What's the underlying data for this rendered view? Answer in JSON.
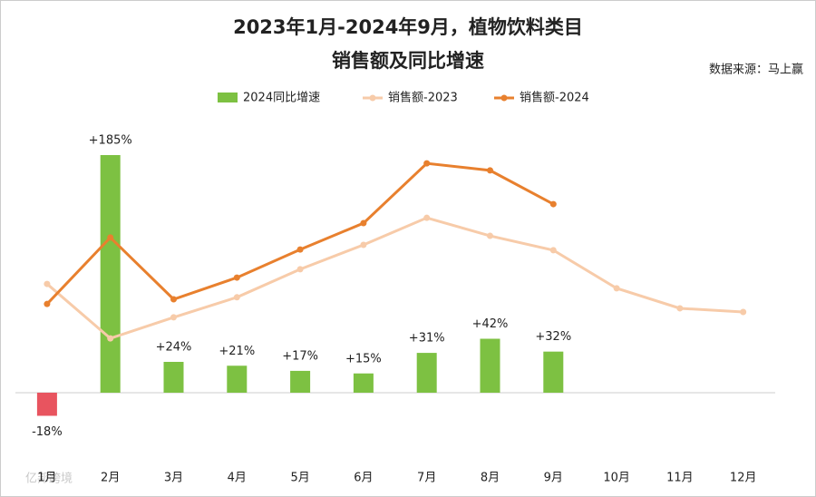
{
  "chart_data": {
    "type": "bar-line",
    "title": "2023年1月-2024年9月，植物饮料类目",
    "subtitle": "销售额及同比增速",
    "source": "数据来源：马上赢",
    "watermark": "亿邦跨境",
    "categories": [
      "1月",
      "2月",
      "3月",
      "4月",
      "5月",
      "6月",
      "7月",
      "8月",
      "9月",
      "10月",
      "11月",
      "12月"
    ],
    "ylim": [
      -50,
      210
    ],
    "y2lim": [
      0,
      100
    ],
    "legend": "top",
    "series": [
      {
        "name": "2024同比增速",
        "type": "bar",
        "color": "#7dc142",
        "negative_color": "#e8545f",
        "values": [
          -18,
          185,
          24,
          21,
          17,
          15,
          31,
          42,
          32,
          null,
          null,
          null
        ],
        "value_labels": [
          "-18%",
          "+185%",
          "+24%",
          "+21%",
          "+17%",
          "+15%",
          "+31%",
          "+42%",
          "+32%",
          null,
          null,
          null
        ]
      },
      {
        "name": "销售额-2023",
        "type": "line",
        "axis": "y2",
        "color": "#f7cba9",
        "values": [
          51.8,
          35.5,
          41.8,
          47.8,
          56.2,
          63.5,
          71.6,
          66.2,
          61.9,
          50.5,
          44.5,
          43.4
        ]
      },
      {
        "name": "销售额-2024",
        "type": "line",
        "axis": "y2",
        "color": "#e8802e",
        "values": [
          45.8,
          65.7,
          47.2,
          53.7,
          62.1,
          70,
          87.9,
          85.8,
          75.7,
          null,
          null,
          null
        ]
      }
    ]
  }
}
